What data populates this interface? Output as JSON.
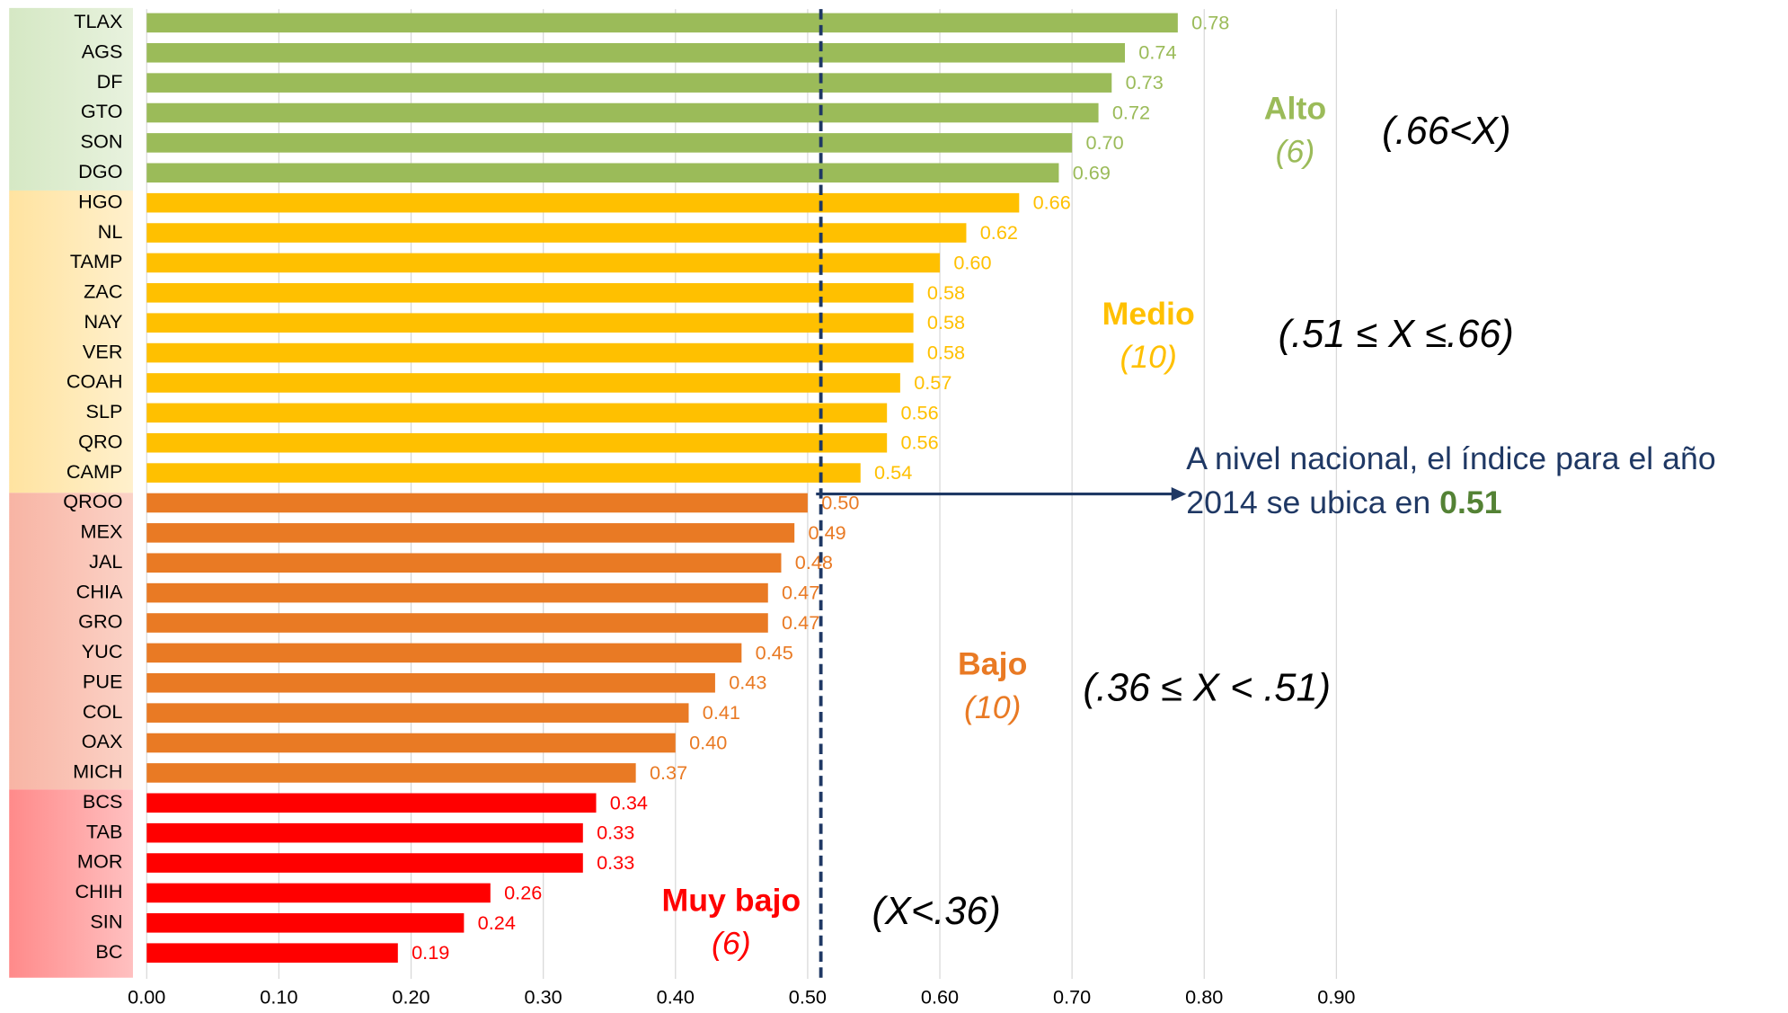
{
  "chart_data": {
    "type": "barh",
    "categories": [
      "TLAX",
      "AGS",
      "DF",
      "GTO",
      "SON",
      "DGO",
      "HGO",
      "NL",
      "TAMP",
      "ZAC",
      "NAY",
      "VER",
      "COAH",
      "SLP",
      "QRO",
      "CAMP",
      "QROO",
      "MEX",
      "JAL",
      "CHIA",
      "GRO",
      "YUC",
      "PUE",
      "COL",
      "OAX",
      "MICH",
      "BCS",
      "TAB",
      "MOR",
      "CHIH",
      "SIN",
      "BC"
    ],
    "values": [
      0.78,
      0.74,
      0.73,
      0.72,
      0.7,
      0.69,
      0.66,
      0.62,
      0.6,
      0.58,
      0.58,
      0.58,
      0.57,
      0.56,
      0.56,
      0.54,
      0.5,
      0.49,
      0.48,
      0.47,
      0.47,
      0.45,
      0.43,
      0.41,
      0.4,
      0.37,
      0.34,
      0.33,
      0.33,
      0.26,
      0.24,
      0.19
    ],
    "value_labels": [
      "0.78",
      "0.74",
      "0.73",
      "0.72",
      "0.70",
      "0.69",
      "0.66",
      "0.62",
      "0.60",
      "0.58",
      "0.58",
      "0.58",
      "0.57",
      "0.56",
      "0.56",
      "0.54",
      "0.50",
      "0.49",
      "0.48",
      "0.47",
      "0.47",
      "0.45",
      "0.43",
      "0.41",
      "0.40",
      "0.37",
      "0.34",
      "0.33",
      "0.33",
      "0.26",
      "0.24",
      "0.19"
    ],
    "colors": [
      "#9bbb59",
      "#9bbb59",
      "#9bbb59",
      "#9bbb59",
      "#9bbb59",
      "#9bbb59",
      "#ffc000",
      "#ffc000",
      "#ffc000",
      "#ffc000",
      "#ffc000",
      "#ffc000",
      "#ffc000",
      "#ffc000",
      "#ffc000",
      "#ffc000",
      "#e97a24",
      "#e97a24",
      "#e97a24",
      "#e97a24",
      "#e97a24",
      "#e97a24",
      "#e97a24",
      "#e97a24",
      "#e97a24",
      "#e97a24",
      "#ff0000",
      "#ff0000",
      "#ff0000",
      "#ff0000",
      "#ff0000",
      "#ff0000"
    ],
    "xlim": [
      0,
      0.9
    ],
    "xticks": [
      {
        "value": 0,
        "label": "0.00"
      },
      {
        "value": 0.1,
        "label": "0.10"
      },
      {
        "value": 0.2,
        "label": "0.20"
      },
      {
        "value": 0.3,
        "label": "0.30"
      },
      {
        "value": 0.4,
        "label": "0.40"
      },
      {
        "value": 0.5,
        "label": "0.50"
      },
      {
        "value": 0.6,
        "label": "0.60"
      },
      {
        "value": 0.7,
        "label": "0.70"
      },
      {
        "value": 0.8,
        "label": "0.80"
      },
      {
        "value": 0.9,
        "label": "0.90"
      }
    ],
    "grid": true,
    "levels": [
      {
        "name": "Alto",
        "count": "(6)",
        "range": "(.66<X)",
        "color": "#9bbb59"
      },
      {
        "name": "Medio",
        "count": "(10)",
        "range": "(.51 ≤ X ≤.66)",
        "color": "#ffc000"
      },
      {
        "name": "Bajo",
        "count": "(10)",
        "range": "(.36 ≤ X < .51)",
        "color": "#e97a24"
      },
      {
        "name": "Muy bajo",
        "count": "(6)",
        "range": "(X<.36)",
        "color": "#ff0000"
      }
    ],
    "national": {
      "line1": "A nivel nacional, el índice para el año",
      "line2": "2014 se ubica en ",
      "value": 0.51
    }
  }
}
